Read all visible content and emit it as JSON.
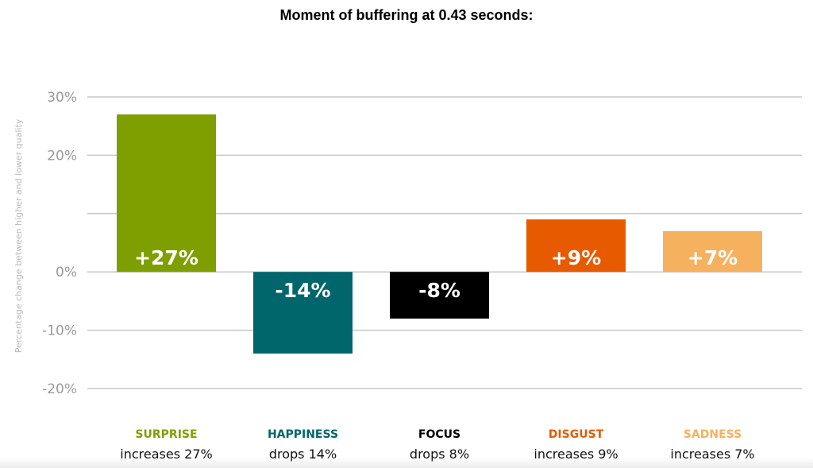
{
  "chart_data": {
    "type": "bar",
    "title": "Moment of buffering at 0.43 seconds:",
    "ylabel": "Percentage change between higher and lower quality",
    "xlabel": "",
    "ylim": [
      -20,
      30
    ],
    "yticks": [
      {
        "value": 30,
        "label": "30%"
      },
      {
        "value": 20,
        "label": "20%"
      },
      {
        "value": 10,
        "label": ""
      },
      {
        "value": 0,
        "label": "0%"
      },
      {
        "value": -10,
        "label": "-10%"
      },
      {
        "value": -20,
        "label": "-20%"
      }
    ],
    "grid": true,
    "legend": "none",
    "categories": [
      "SURPRISE",
      "HAPPINESS",
      "FOCUS",
      "DISGUST",
      "SADNESS"
    ],
    "values": [
      27,
      -14,
      -8,
      9,
      7
    ],
    "data_labels": [
      "+27%",
      "-14%",
      "-8%",
      "+9%",
      "+7%"
    ],
    "descriptions": [
      "increases 27%",
      "drops 14%",
      "drops 8%",
      "increases 9%",
      "increases 7%"
    ],
    "colors": [
      "#7f9f00",
      "#00666b",
      "#000000",
      "#e85a00",
      "#f6b15e"
    ]
  }
}
